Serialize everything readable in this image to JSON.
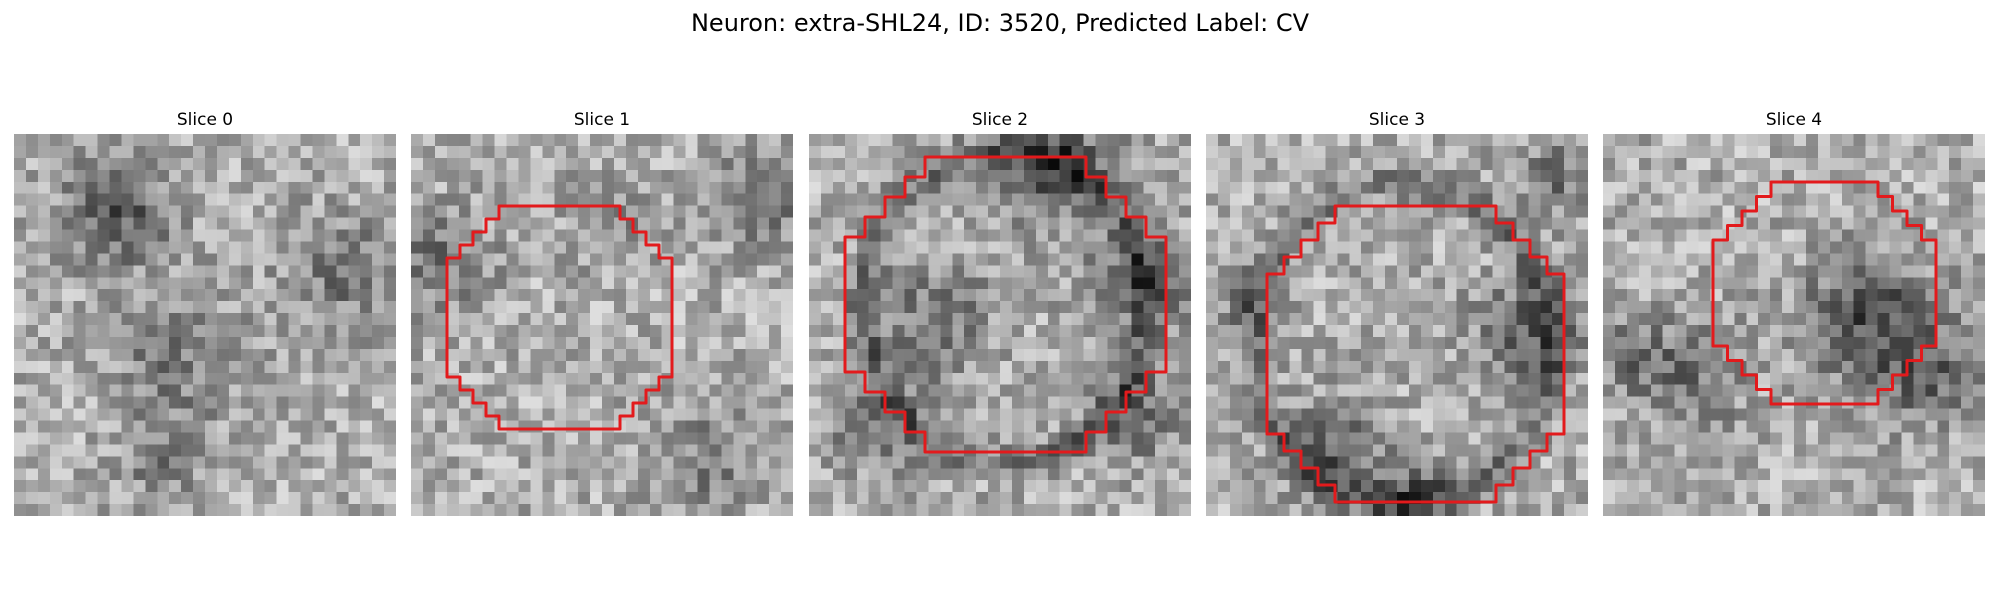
{
  "figure": {
    "title": "Neuron: extra-SHL24, ID: 3520, Predicted Label: CV"
  },
  "contour_color": "#e31a1c",
  "panels": [
    {
      "title": "Slice 0",
      "has_contour": false,
      "seed": 11
    },
    {
      "title": "Slice 1",
      "has_contour": true,
      "seed": 23
    },
    {
      "title": "Slice 2",
      "has_contour": true,
      "seed": 37
    },
    {
      "title": "Slice 3",
      "has_contour": true,
      "seed": 51
    },
    {
      "title": "Slice 4",
      "has_contour": true,
      "seed": 67
    }
  ]
}
